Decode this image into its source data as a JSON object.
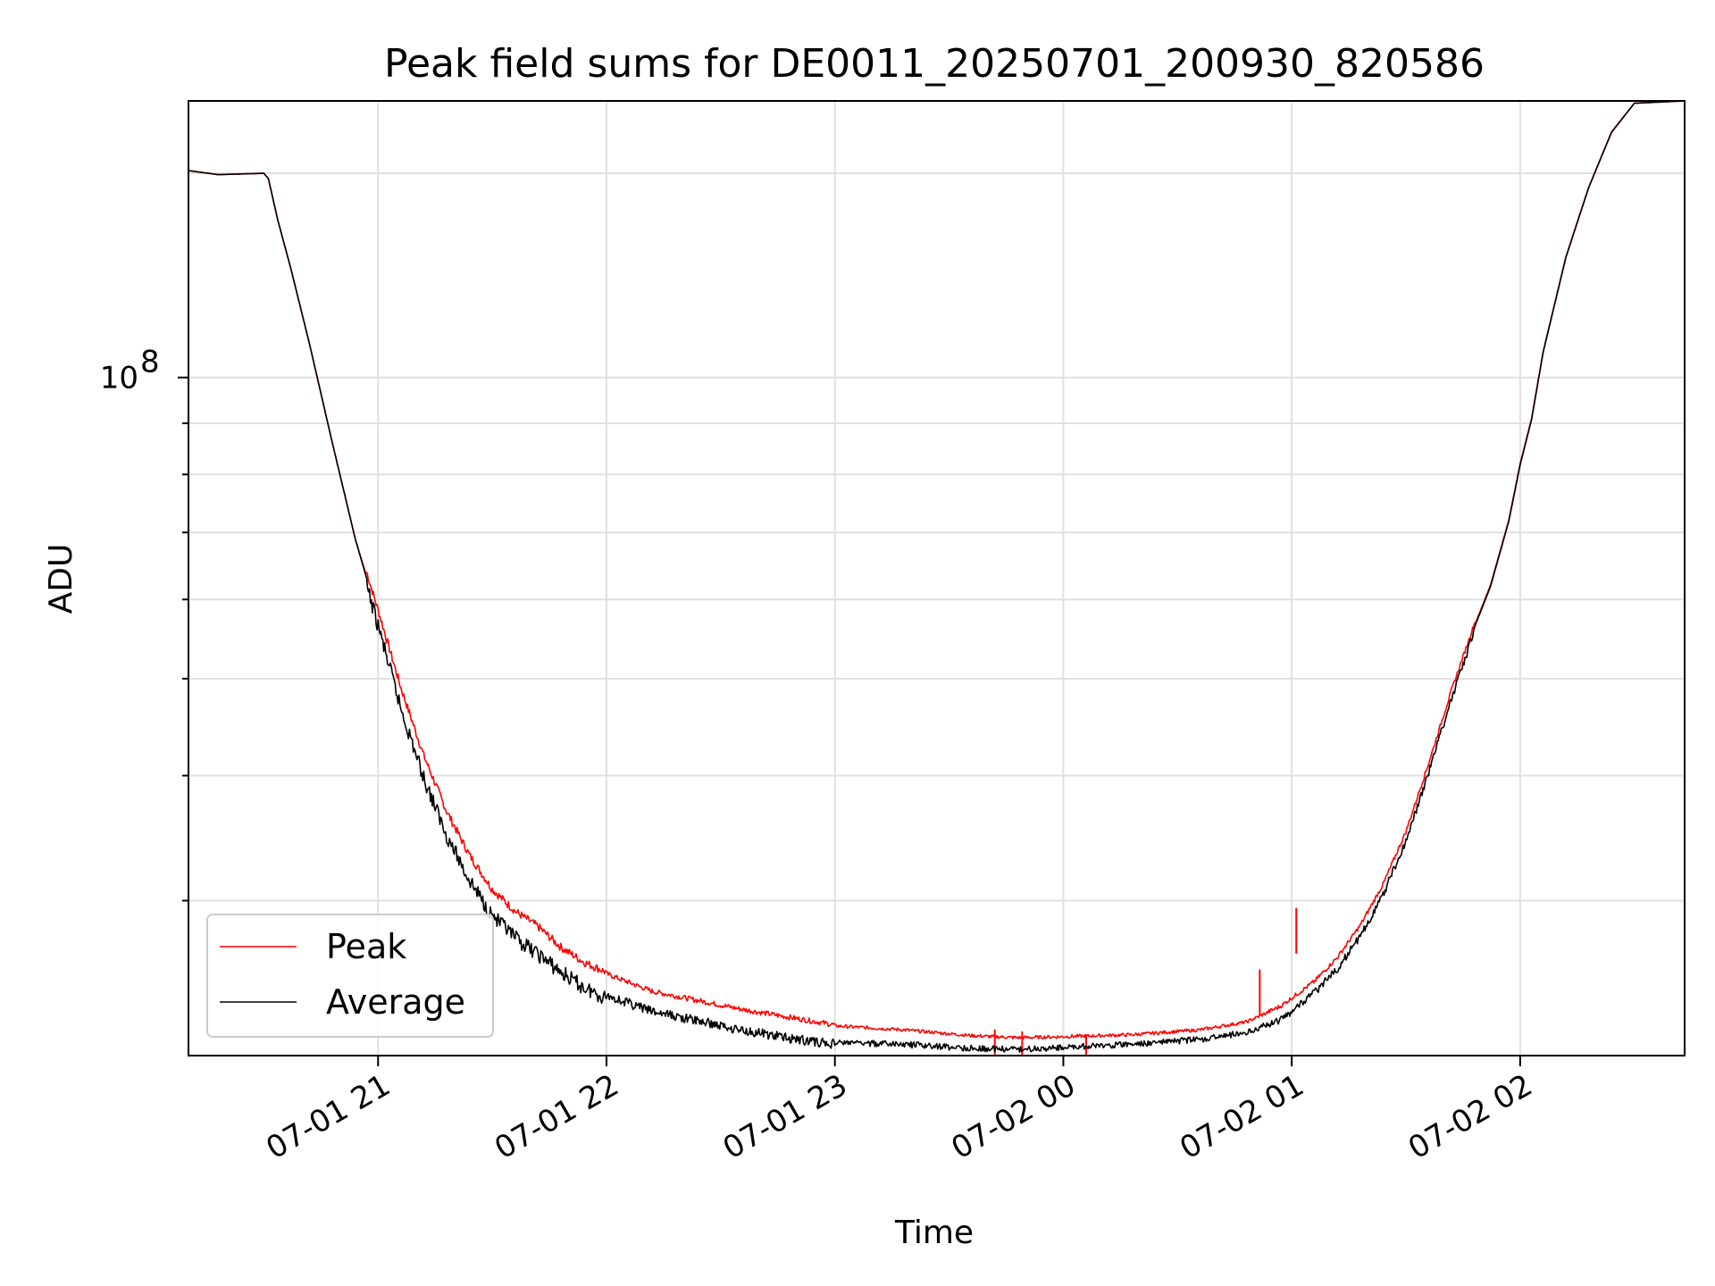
{
  "chart_data": {
    "type": "line",
    "title": "Peak field sums for DE0011_20250701_200930_820586",
    "xlabel": "Time",
    "ylabel": "ADU",
    "x_ticks": [
      "07-01 21",
      "07-01 22",
      "07-01 23",
      "07-02 00",
      "07-02 01",
      "07-02 02"
    ],
    "x_tick_hours": [
      21,
      22,
      23,
      24,
      25,
      26
    ],
    "y_tick_label": {
      "base": "10",
      "exp": "8"
    },
    "y_scale": "log",
    "ylim": [
      21000000,
      189000000
    ],
    "xlim_hours": [
      20.17,
      26.72
    ],
    "grid": true,
    "legend_position": "lower-left",
    "series": [
      {
        "name": "Peak",
        "color": "#ff0000",
        "points": [
          [
            20.17,
            161000000
          ],
          [
            20.3,
            159500000
          ],
          [
            20.5,
            160000000
          ],
          [
            20.52,
            158000000
          ],
          [
            20.56,
            144000000
          ],
          [
            20.62,
            128000000
          ],
          [
            20.7,
            108000000
          ],
          [
            20.8,
            86000000
          ],
          [
            20.9,
            69000000
          ],
          [
            21.0,
            58000000
          ],
          [
            21.1,
            48500000
          ],
          [
            21.2,
            41500000
          ],
          [
            21.3,
            36500000
          ],
          [
            21.4,
            33000000
          ],
          [
            21.5,
            30500000
          ],
          [
            21.6,
            29000000
          ],
          [
            21.7,
            28000000
          ],
          [
            21.8,
            26700000
          ],
          [
            21.9,
            25800000
          ],
          [
            22.0,
            25200000
          ],
          [
            22.2,
            24200000
          ],
          [
            22.4,
            23700000
          ],
          [
            22.6,
            23200000
          ],
          [
            22.8,
            22800000
          ],
          [
            23.0,
            22400000
          ],
          [
            23.3,
            22200000
          ],
          [
            23.6,
            21900000
          ],
          [
            23.8,
            21800000
          ],
          [
            24.0,
            21850000
          ],
          [
            24.3,
            21950000
          ],
          [
            24.6,
            22200000
          ],
          [
            24.8,
            22600000
          ],
          [
            24.95,
            23400000
          ],
          [
            25.1,
            24800000
          ],
          [
            25.2,
            26200000
          ],
          [
            25.3,
            28200000
          ],
          [
            25.4,
            31000000
          ],
          [
            25.5,
            35000000
          ],
          [
            25.6,
            41000000
          ],
          [
            25.7,
            48500000
          ],
          [
            25.8,
            56500000
          ],
          [
            25.87,
            62000000
          ],
          [
            25.95,
            72000000
          ],
          [
            26.0,
            82000000
          ],
          [
            26.05,
            91000000
          ],
          [
            26.1,
            106000000
          ],
          [
            26.2,
            132000000
          ],
          [
            26.3,
            155000000
          ],
          [
            26.4,
            176000000
          ],
          [
            26.5,
            188000000
          ],
          [
            26.72,
            189000000
          ]
        ],
        "spikes": [
          [
            24.86,
            25600000
          ],
          [
            25.02,
            29500000
          ],
          [
            23.7,
            22300000
          ],
          [
            23.82,
            22200000
          ],
          [
            24.1,
            22050000
          ]
        ]
      },
      {
        "name": "Average",
        "color": "#000000",
        "points": [
          [
            20.17,
            161000000
          ],
          [
            20.3,
            159500000
          ],
          [
            20.5,
            160000000
          ],
          [
            20.52,
            158000000
          ],
          [
            20.56,
            144000000
          ],
          [
            20.62,
            128000000
          ],
          [
            20.7,
            108000000
          ],
          [
            20.8,
            86000000
          ],
          [
            20.9,
            69000000
          ],
          [
            21.0,
            57500000
          ],
          [
            21.1,
            47500000
          ],
          [
            21.2,
            40500000
          ],
          [
            21.3,
            35500000
          ],
          [
            21.4,
            32000000
          ],
          [
            21.5,
            29500000
          ],
          [
            21.6,
            28000000
          ],
          [
            21.7,
            27000000
          ],
          [
            21.8,
            25900000
          ],
          [
            21.9,
            25000000
          ],
          [
            22.0,
            24400000
          ],
          [
            22.2,
            23500000
          ],
          [
            22.4,
            23000000
          ],
          [
            22.6,
            22500000
          ],
          [
            22.8,
            22100000
          ],
          [
            23.0,
            21800000
          ],
          [
            23.3,
            21700000
          ],
          [
            23.6,
            21500000
          ],
          [
            23.8,
            21450000
          ],
          [
            24.0,
            21550000
          ],
          [
            24.3,
            21700000
          ],
          [
            24.6,
            21950000
          ],
          [
            24.8,
            22300000
          ],
          [
            24.95,
            23000000
          ],
          [
            25.1,
            24500000
          ],
          [
            25.2,
            25900000
          ],
          [
            25.3,
            27900000
          ],
          [
            25.4,
            30700000
          ],
          [
            25.5,
            34700000
          ],
          [
            25.6,
            40700000
          ],
          [
            25.7,
            48200000
          ],
          [
            25.8,
            56300000
          ],
          [
            25.87,
            61800000
          ],
          [
            25.95,
            71800000
          ],
          [
            26.0,
            81800000
          ],
          [
            26.05,
            90800000
          ],
          [
            26.1,
            105800000
          ],
          [
            26.2,
            131800000
          ],
          [
            26.3,
            154800000
          ],
          [
            26.4,
            175800000
          ],
          [
            26.5,
            188000000
          ],
          [
            26.72,
            189000000
          ]
        ]
      }
    ]
  }
}
